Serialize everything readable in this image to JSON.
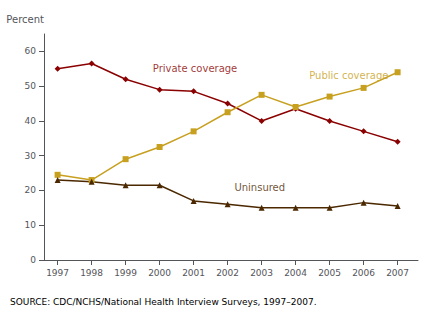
{
  "chart_data": {
    "type": "line",
    "ylabel": "Percent",
    "caption": "SOURCE: CDC/NCHS/National Health Interview Surveys, 1997–2007.",
    "x": [
      1997,
      1998,
      1999,
      2000,
      2001,
      2002,
      2003,
      2004,
      2005,
      2006,
      2007
    ],
    "series": [
      {
        "color": "#8B0000",
        "marker": "diamond",
        "values": [
          55,
          56.5,
          52,
          49,
          48.5,
          45,
          40,
          43.5,
          40,
          37,
          34
        ]
      },
      {
        "color": "#C8A020",
        "marker": "square",
        "values": [
          24.5,
          23,
          29,
          32.5,
          37,
          42.5,
          47.5,
          44,
          47,
          49.5,
          54
        ]
      },
      {
        "color": "#4B2800",
        "marker": "triangle",
        "values": [
          23,
          22.5,
          21.5,
          21.5,
          17,
          16,
          15,
          15,
          15,
          16.5,
          15.5
        ]
      }
    ],
    "annotations": [
      {
        "text": "Private coverage",
        "x": 1999.8,
        "y": 53.5,
        "color": "#8B0000"
      },
      {
        "text": "Public coverage",
        "x": 2004.4,
        "y": 51.5,
        "color": "#C8A020"
      },
      {
        "text": "Uninsured",
        "x": 2002.2,
        "y": 19.5,
        "color": "#4B2800"
      }
    ],
    "xlim": [
      1996.6,
      2007.6
    ],
    "xticks": [
      1997,
      1998,
      1999,
      2000,
      2001,
      2002,
      2003,
      2004,
      2005,
      2006,
      2007
    ],
    "ylim": [
      0,
      65
    ],
    "yticks": [
      0,
      10,
      20,
      30,
      40,
      50,
      60
    ],
    "grid": false
  }
}
